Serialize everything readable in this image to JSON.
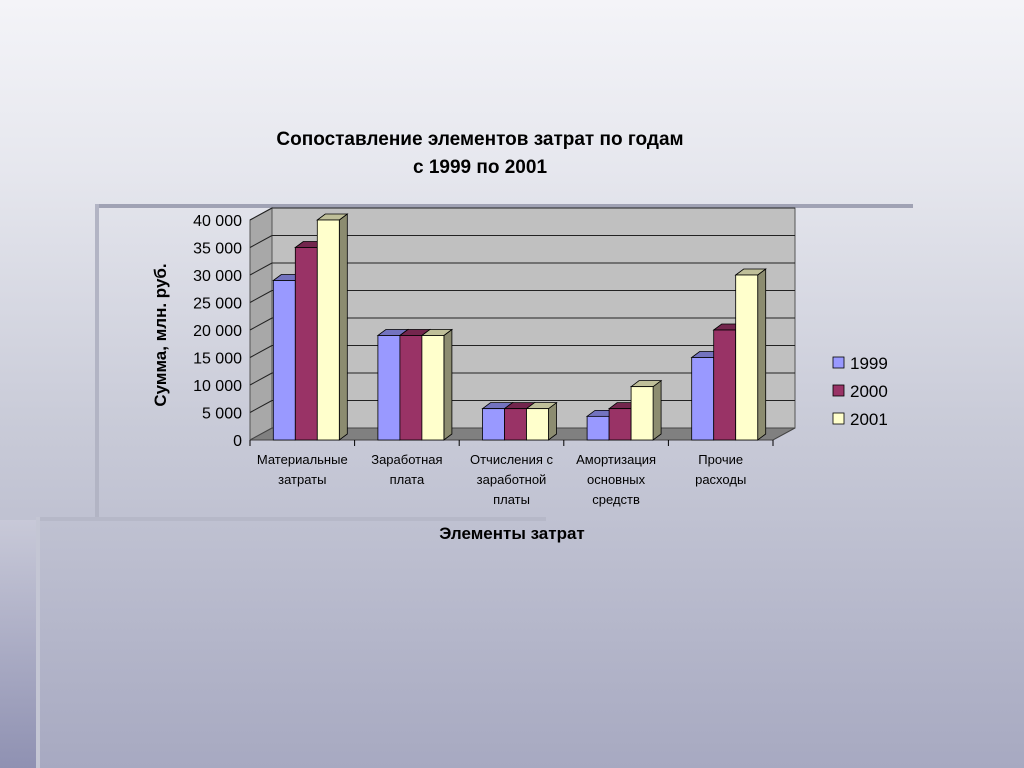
{
  "slide": {
    "colors": {
      "bg_top": "#f4f4f8",
      "bg_bottom": "#a7a9c1",
      "left_strip": "#8f91b2",
      "rule": "#a0a2b4"
    }
  },
  "chart_data": {
    "type": "bar",
    "style": "3d-clustered-column",
    "title": [
      "Сопоставление элементов затрат по годам",
      "с 1999 по 2001"
    ],
    "xlabel": "Элементы затрат",
    "ylabel": "Сумма, млн. руб.",
    "ylim": [
      0,
      40000
    ],
    "yticks": [
      0,
      5000,
      10000,
      15000,
      20000,
      25000,
      30000,
      35000,
      40000
    ],
    "ytick_labels": [
      "0",
      "5 000",
      "10 000",
      "15 000",
      "20 000",
      "25 000",
      "30 000",
      "35 000",
      "40 000"
    ],
    "grid": true,
    "legend_position": "right",
    "categories": [
      [
        "Материальные",
        "затраты"
      ],
      [
        "Заработная",
        "плата"
      ],
      [
        "Отчисления с",
        "заработной",
        "платы"
      ],
      [
        "Амортизация",
        "основных",
        "средств"
      ],
      [
        "Прочие",
        "расходы"
      ]
    ],
    "series": [
      {
        "name": "1999",
        "color": "#9999ff",
        "values": [
          29000,
          19000,
          5700,
          4300,
          15000
        ]
      },
      {
        "name": "2000",
        "color": "#993366",
        "values": [
          35000,
          19000,
          5700,
          5700,
          20000
        ]
      },
      {
        "name": "2001",
        "color": "#ffffcc",
        "values": [
          40000,
          19000,
          5700,
          9700,
          30000
        ]
      }
    ]
  }
}
